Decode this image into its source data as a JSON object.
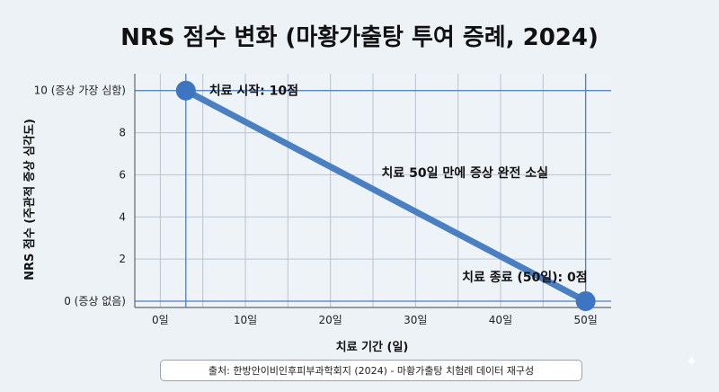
{
  "chart_data": {
    "type": "line",
    "title": "NRS 점수 변화 (마황가출탕 투여 증례, 2024)",
    "xlabel": "치료 기간 (일)",
    "ylabel": "NRS 점수 (주관적 증상 심각도)",
    "xlim": [
      -3,
      53
    ],
    "ylim": [
      -0.3,
      10.8
    ],
    "x_ticks": [
      0,
      10,
      20,
      30,
      40,
      50
    ],
    "x_tick_labels": [
      "0일",
      "10일",
      "20일",
      "30일",
      "40일",
      "50일"
    ],
    "y_ticks": [
      0,
      2,
      4,
      6,
      8,
      10
    ],
    "y_tick_labels": [
      "0 (증상 없음)",
      "2",
      "4",
      "6",
      "8",
      "10 (증상 가장 심함)"
    ],
    "grid": true,
    "series": [
      {
        "x": [
          3,
          50
        ],
        "y": [
          10,
          0
        ]
      }
    ],
    "annotations": [
      {
        "text": "치료 시작: 10점",
        "x": 3,
        "y": 10,
        "anchor": "start"
      },
      {
        "text": "치료 50일 만에 증상 완전 소실",
        "x": 26,
        "y": 5.9,
        "anchor": "start"
      },
      {
        "text": "치료 종료 (50일): 0점",
        "x": 50,
        "y": 0,
        "anchor": "end"
      }
    ],
    "colors": {
      "line": "#4a7fc1",
      "marker": "#3d75c2",
      "grid": "#b8c4d0",
      "highlight": "#4a7fc1"
    }
  },
  "caption": "출처: 한방안이비인후피부과학회지 (2024) - 마황가출탕 치험례 데이터 재구성"
}
